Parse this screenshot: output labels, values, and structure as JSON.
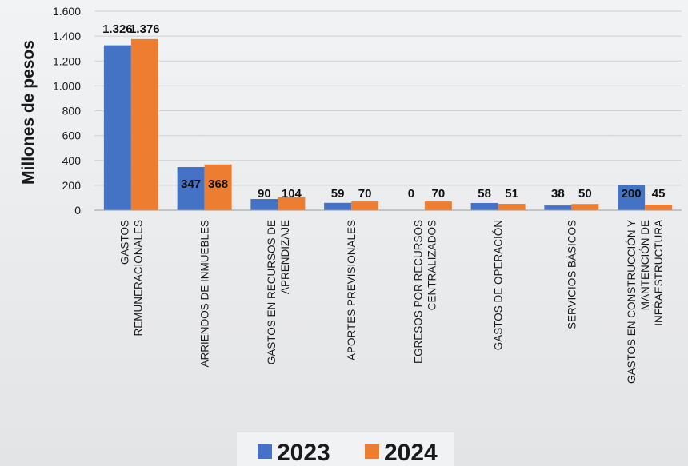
{
  "chart_data": {
    "type": "bar",
    "title": "",
    "xlabel": "",
    "ylabel": "Millones de pesos",
    "ylim": [
      0,
      1600
    ],
    "yticks": [
      0,
      200,
      400,
      600,
      800,
      1000,
      1200,
      1400,
      1600
    ],
    "ytick_labels": [
      "0",
      "200",
      "400",
      "600",
      "800",
      "1.000",
      "1.200",
      "1.400",
      "1.600"
    ],
    "grid": true,
    "legend_position": "bottom",
    "categories": [
      [
        "GASTOS",
        "REMUNERACIONALES"
      ],
      [
        "ARRIENDOS DE INMUEBLES"
      ],
      [
        "GASTOS EN RECURSOS DE",
        "APRENDIZAJE"
      ],
      [
        "APORTES PREVISIONALES"
      ],
      [
        "EGRESOS POR RECURSOS",
        "CENTRALIZADOS"
      ],
      [
        "GASTOS DE OPERACIÓN"
      ],
      [
        "SERVICIOS BÁSICOS"
      ],
      [
        "GASTOS EN CONSTRUCCIÓN Y",
        "MANTENCIÓN DE",
        "INFRAESTRUCTURA"
      ]
    ],
    "series": [
      {
        "name": "2023",
        "color": "#4472c4",
        "values": [
          1326,
          347,
          90,
          59,
          0,
          58,
          38,
          200
        ],
        "labels": [
          "1.326",
          "347",
          "90",
          "59",
          "0",
          "58",
          "38",
          "200"
        ]
      },
      {
        "name": "2024",
        "color": "#ed7d31",
        "values": [
          1376,
          368,
          104,
          70,
          70,
          51,
          50,
          45
        ],
        "labels": [
          "1.376",
          "368",
          "104",
          "70",
          "70",
          "51",
          "50",
          "45"
        ]
      }
    ]
  }
}
